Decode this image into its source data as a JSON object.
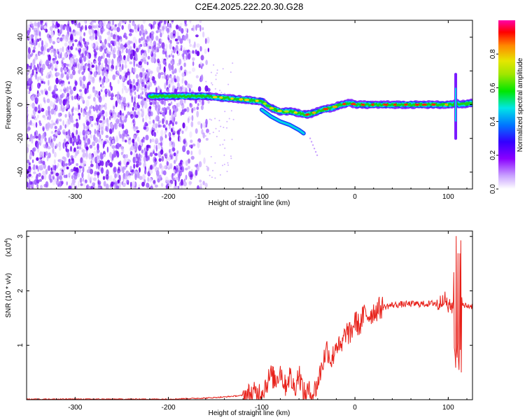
{
  "title": "C2E4.2025.222.20.30.G28",
  "colors": {
    "snr_line": "#e8221b",
    "colormap": [
      "#ffffff",
      "#8a00ff",
      "#3300ff",
      "#0077ff",
      "#00e6e6",
      "#00e600",
      "#e6e600",
      "#ff8800",
      "#ff0000",
      "#ff00aa"
    ]
  },
  "chart_data": [
    {
      "type": "heatmap",
      "name": "spectrogram",
      "xlabel": "Height of straight line (km)",
      "ylabel": "Frequency (Hz)",
      "xlim": [
        -352,
        126
      ],
      "ylim": [
        -50,
        50
      ],
      "xticks": [
        -300,
        -200,
        -100,
        0,
        100
      ],
      "yticks": [
        -40,
        -20,
        0,
        20,
        40
      ],
      "grid": false,
      "ridge": {
        "x": [
          -220,
          -200,
          -180,
          -160,
          -140,
          -120,
          -100,
          -90,
          -80,
          -70,
          -60,
          -52,
          -45,
          -35,
          -25,
          -15,
          -5,
          0,
          10,
          30,
          60,
          90,
          100,
          105,
          108,
          112,
          126
        ],
        "frequency": [
          5,
          5,
          5,
          5,
          4,
          3,
          2,
          -2,
          -4,
          -4,
          -5,
          -6,
          -5,
          -3,
          -2,
          0,
          1,
          0,
          0,
          0,
          0,
          0,
          0,
          0,
          1,
          0,
          1
        ]
      },
      "noise_region_x": [
        -352,
        -155
      ],
      "colorbar": {
        "label": "Normalized spectral amplitude",
        "range": [
          0,
          1
        ],
        "ticks": [
          "0.0",
          "0.2",
          "0.4",
          "0.6",
          "0.8"
        ]
      }
    },
    {
      "type": "line",
      "name": "snr",
      "xlabel": "Height of straight line (km)",
      "ylabel": "SNR (10 * v/v)",
      "scale_note": "(x10",
      "scale_exponent": "4",
      "xlim": [
        -352,
        126
      ],
      "ylim": [
        0,
        3.1
      ],
      "xticks": [
        -300,
        -200,
        -100,
        0,
        100
      ],
      "yticks": [
        1,
        2,
        3
      ],
      "grid": false,
      "series": [
        {
          "x": [
            -352,
            -250,
            -200,
            -180,
            -160,
            -140,
            -120,
            -110,
            -100,
            -95,
            -90,
            -85,
            -80,
            -75,
            -70,
            -65,
            -60,
            -55,
            -50,
            -45,
            -40,
            -35,
            -30,
            -25,
            -20,
            -15,
            -10,
            -5,
            0,
            5,
            10,
            15,
            20,
            25,
            30,
            35,
            40,
            50,
            60,
            70,
            80,
            85,
            90,
            95,
            100,
            105,
            108,
            110,
            112,
            115,
            120,
            126
          ],
          "values": [
            0.01,
            0.01,
            0.01,
            0.02,
            0.03,
            0.05,
            0.08,
            0.1,
            0.15,
            0.3,
            0.45,
            0.35,
            0.55,
            0.25,
            0.45,
            0.2,
            0.5,
            0.1,
            0.15,
            0.1,
            0.3,
            0.65,
            0.95,
            0.7,
            1.05,
            0.9,
            1.25,
            1.2,
            1.45,
            1.35,
            1.58,
            1.55,
            1.62,
            1.67,
            1.7,
            1.72,
            1.74,
            1.75,
            1.76,
            1.76,
            1.76,
            1.78,
            1.74,
            1.9,
            1.7,
            1.72,
            3.0,
            0.5,
            3.0,
            1.73,
            1.72,
            1.72
          ]
        }
      ]
    }
  ]
}
